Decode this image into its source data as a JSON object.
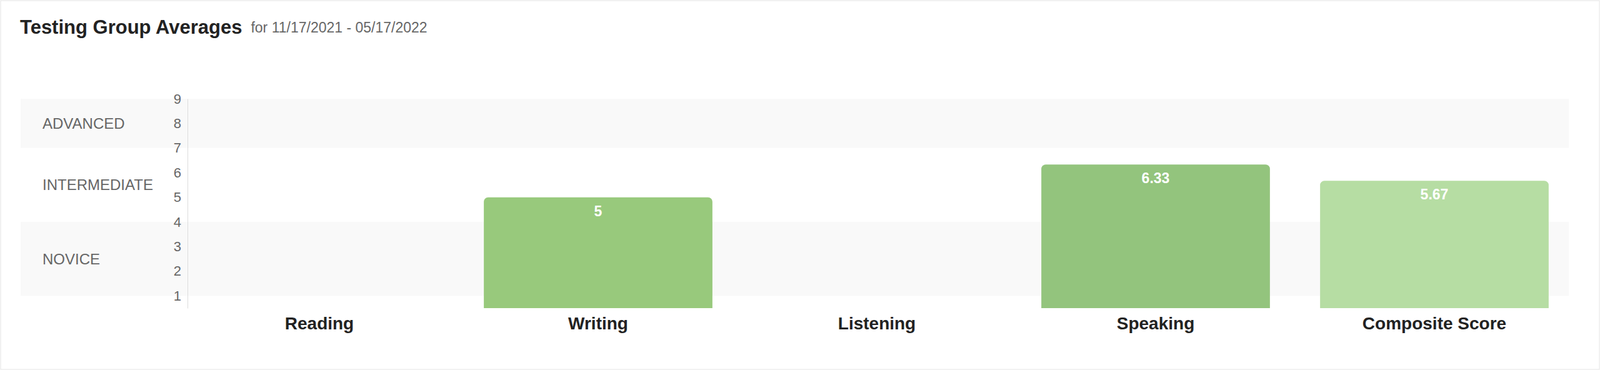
{
  "chart_data": {
    "type": "bar",
    "title": "Testing Group Averages",
    "subtitle": "for 11/17/2021 - 05/17/2022",
    "categories": [
      "Reading",
      "Writing",
      "Listening",
      "Speaking",
      "Composite Score"
    ],
    "values": [
      null,
      5,
      null,
      6.33,
      5.67
    ],
    "colors": [
      null,
      "#98c97c",
      null,
      "#93c47d",
      "#b6dda3"
    ],
    "ylim": [
      0.5,
      9
    ],
    "yticks": [
      1,
      2,
      3,
      4,
      5,
      6,
      7,
      8,
      9
    ],
    "bands": [
      {
        "label": "ADVANCED",
        "from": 7,
        "to": 9
      },
      {
        "label": "INTERMEDIATE",
        "from": 4,
        "to": 7
      },
      {
        "label": "NOVICE",
        "from": 1,
        "to": 4
      }
    ],
    "data_labels": true
  }
}
